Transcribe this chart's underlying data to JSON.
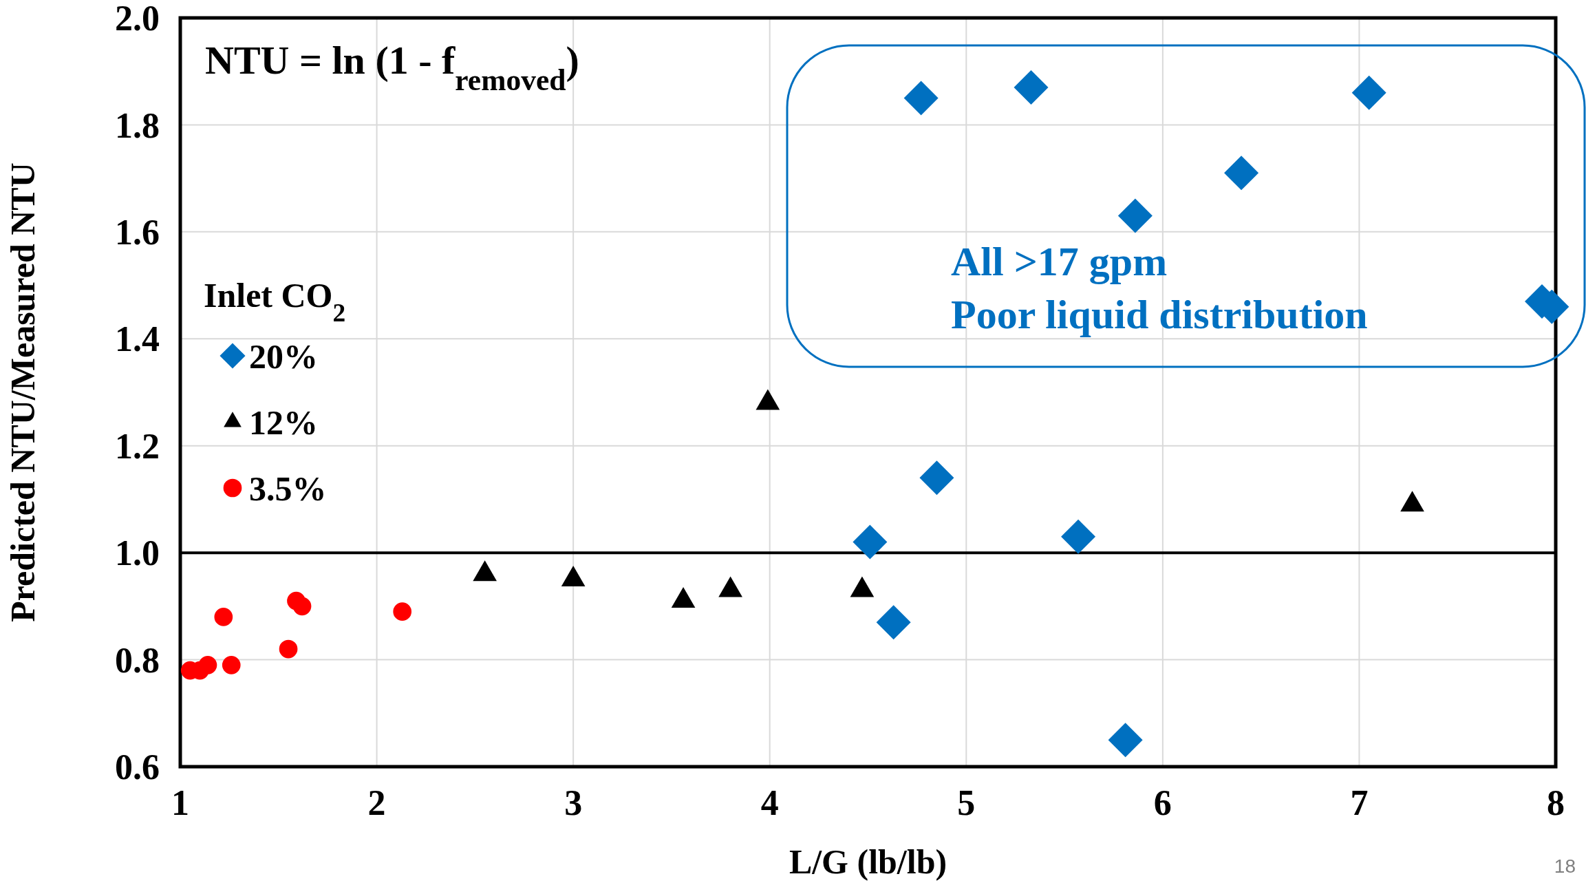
{
  "chart_data": {
    "type": "scatter",
    "xlabel": "L/G (lb/lb)",
    "ylabel": "Predicted NTU/Measured NTU",
    "xlim": [
      1,
      8
    ],
    "xticks": [
      1,
      2,
      3,
      4,
      5,
      6,
      7,
      8
    ],
    "ylim": [
      0.6,
      2.0
    ],
    "yticks": [
      {
        "value": 0.6,
        "label": "0.6"
      },
      {
        "value": 0.8,
        "label": "0.8"
      },
      {
        "value": 1.0,
        "label": "1.0"
      },
      {
        "value": 1.2,
        "label": "1.2"
      },
      {
        "value": 1.4,
        "label": "1.4"
      },
      {
        "value": 1.6,
        "label": "1.6"
      },
      {
        "value": 1.8,
        "label": "1.8"
      },
      {
        "value": 2.0,
        "label": "2.0"
      }
    ],
    "grid": true,
    "legend": "left",
    "legend_title": "Inlet CO$_{2}$",
    "ref_lines": [
      {
        "axis": "y",
        "value": 1.0,
        "color": "#000000",
        "line_style": "solid"
      }
    ],
    "annotations": [
      "NTU = ln (1 - f$_{removed}$)",
      "All >17 gpm\nPoor liquid distribution",
      "18"
    ],
    "series": [
      {
        "name": "20%",
        "color": "#0070c0",
        "marker": "diamond",
        "x": [
          4.77,
          5.33,
          7.05,
          6.4,
          5.86,
          7.93,
          7.98,
          4.85,
          4.51,
          5.57,
          4.63,
          5.81
        ],
        "values": [
          1.85,
          1.87,
          1.86,
          1.71,
          1.63,
          1.47,
          1.46,
          1.14,
          1.02,
          1.03,
          0.87,
          0.65
        ]
      },
      {
        "name": "12%",
        "color": "#000000",
        "marker": "triangle",
        "x": [
          3.99,
          2.55,
          3.0,
          3.56,
          3.8,
          4.47,
          7.27
        ],
        "values": [
          1.28,
          0.96,
          0.95,
          0.91,
          0.93,
          0.93,
          1.09
        ]
      },
      {
        "name": "3.5%",
        "color": "#ff0000",
        "marker": "circle",
        "x": [
          1.05,
          1.1,
          1.14,
          1.26,
          1.22,
          1.55,
          1.59,
          1.62,
          2.13
        ],
        "values": [
          0.78,
          0.78,
          0.79,
          0.79,
          0.88,
          0.82,
          0.91,
          0.9,
          0.89
        ]
      }
    ]
  }
}
